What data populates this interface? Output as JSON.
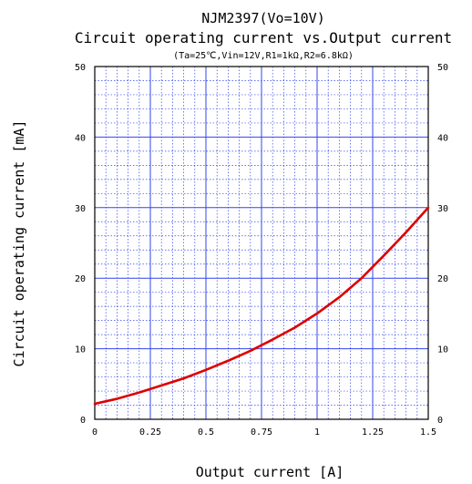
{
  "chart_data": {
    "type": "line",
    "title": "NJM2397(Vo=10V)",
    "subtitle": "Circuit operating current vs.Output current",
    "conditions": "(Ta=25℃,Vin=12V,R1=1kΩ,R2=6.8kΩ)",
    "xlabel": "Output current [A]",
    "ylabel": "Circuit operating current [mA]",
    "xlim": [
      0,
      1.5
    ],
    "ylim": [
      0,
      50
    ],
    "x_ticks": [
      "0",
      "0.25",
      "0.5",
      "0.75",
      "1",
      "1.25",
      "1.5"
    ],
    "y_ticks": [
      "0",
      "10",
      "20",
      "30",
      "40",
      "50"
    ],
    "grid": true,
    "minor_grid": true,
    "right_axis_labels": true,
    "series": [
      {
        "color": "#dd0000",
        "x": [
          0,
          0.1,
          0.2,
          0.3,
          0.4,
          0.5,
          0.6,
          0.7,
          0.8,
          0.9,
          1.0,
          1.1,
          1.2,
          1.3,
          1.4,
          1.5
        ],
        "y": [
          2.2,
          2.9,
          3.8,
          4.8,
          5.8,
          7.0,
          8.3,
          9.7,
          11.3,
          13.0,
          15.0,
          17.3,
          20.0,
          23.2,
          26.5,
          30.0
        ]
      }
    ]
  }
}
